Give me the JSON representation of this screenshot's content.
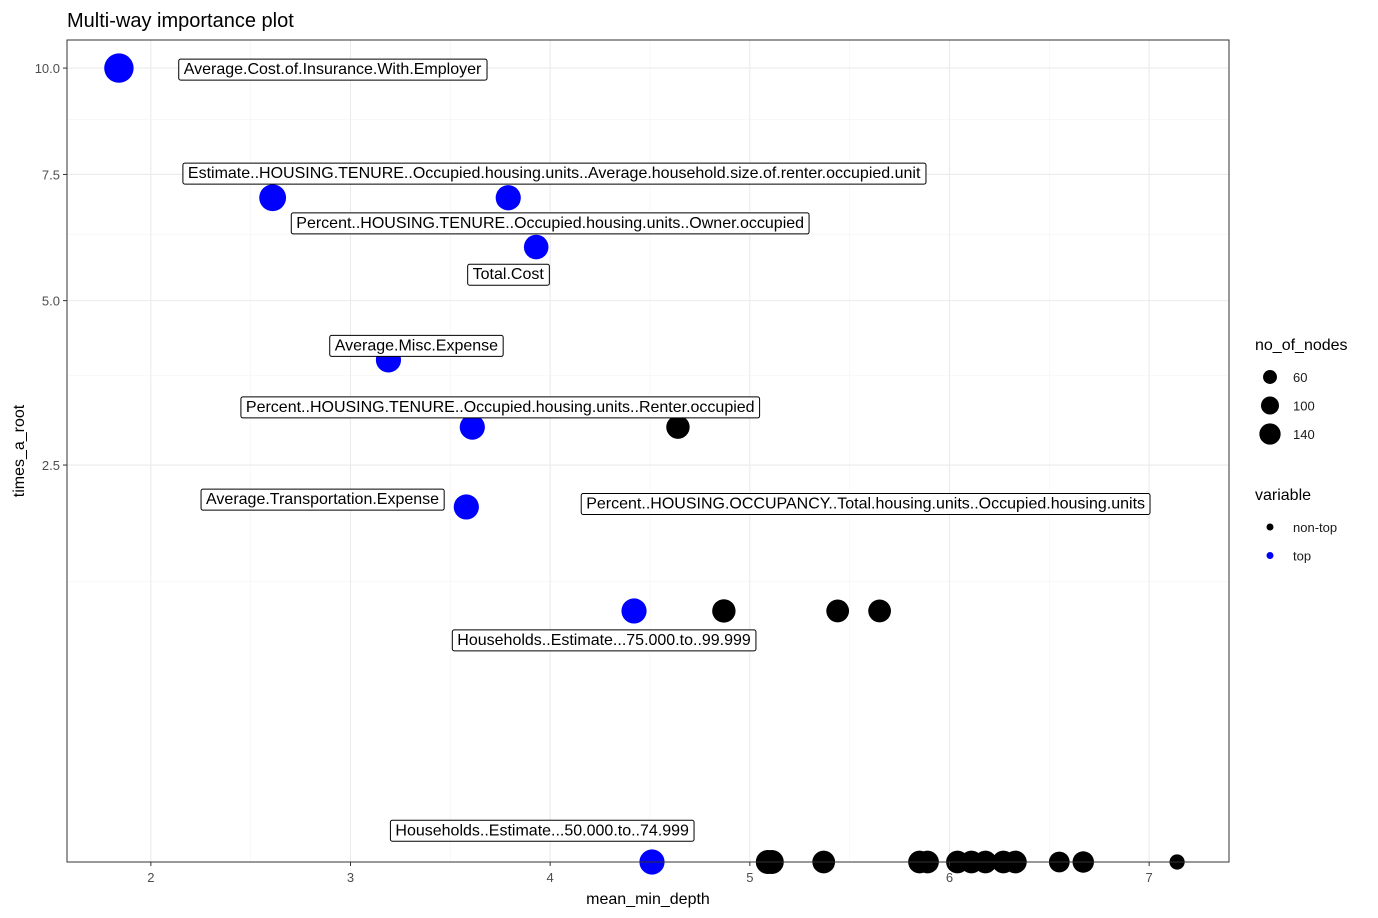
{
  "chart_data": {
    "type": "scatter",
    "title": "Multi-way importance plot",
    "xlabel": "mean_min_depth",
    "ylabel": "times_a_root",
    "xlim": [
      1.58,
      7.4
    ],
    "y_scale": "sqrt",
    "ylim": [
      0,
      10.72
    ],
    "x_ticks": [
      2,
      3,
      4,
      5,
      6,
      7
    ],
    "x_tick_labels": [
      "2",
      "3",
      "4",
      "5",
      "6",
      "7"
    ],
    "y_ticks": [
      2.5,
      5.0,
      7.5,
      10.0
    ],
    "y_tick_labels": [
      "2.5",
      "5.0",
      "7.5",
      "10.0"
    ],
    "grid": true,
    "colors": {
      "top": "#0000ff",
      "non-top": "#000000"
    },
    "legend": {
      "placement": "right",
      "size_title": "no_of_nodes",
      "size_entries": [
        {
          "label": "60",
          "value": 60
        },
        {
          "label": "100",
          "value": 100
        },
        {
          "label": "140",
          "value": 140
        }
      ],
      "color_title": "variable",
      "color_entries": [
        {
          "label": "non-top",
          "key": "non-top"
        },
        {
          "label": "top",
          "key": "top"
        }
      ]
    },
    "points": [
      {
        "x": 1.84,
        "y": 10,
        "nodes": 150,
        "variable": "top"
      },
      {
        "x": 2.61,
        "y": 7,
        "nodes": 125,
        "variable": "top"
      },
      {
        "x": 3.79,
        "y": 7,
        "nodes": 110,
        "variable": "top"
      },
      {
        "x": 3.93,
        "y": 6,
        "nodes": 105,
        "variable": "top"
      },
      {
        "x": 3.19,
        "y": 4,
        "nodes": 110,
        "variable": "top"
      },
      {
        "x": 3.61,
        "y": 3,
        "nodes": 110,
        "variable": "top"
      },
      {
        "x": 4.64,
        "y": 3,
        "nodes": 95,
        "variable": "non-top"
      },
      {
        "x": 3.58,
        "y": 2,
        "nodes": 110,
        "variable": "top"
      },
      {
        "x": 4.42,
        "y": 1,
        "nodes": 110,
        "variable": "top"
      },
      {
        "x": 4.87,
        "y": 1,
        "nodes": 95,
        "variable": "non-top"
      },
      {
        "x": 5.44,
        "y": 1,
        "nodes": 90,
        "variable": "non-top"
      },
      {
        "x": 5.65,
        "y": 1,
        "nodes": 90,
        "variable": "non-top"
      },
      {
        "x": 4.51,
        "y": 0,
        "nodes": 110,
        "variable": "top"
      },
      {
        "x": 5.09,
        "y": 0,
        "nodes": 100,
        "variable": "non-top"
      },
      {
        "x": 5.11,
        "y": 0,
        "nodes": 100,
        "variable": "non-top"
      },
      {
        "x": 5.37,
        "y": 0,
        "nodes": 90,
        "variable": "non-top"
      },
      {
        "x": 5.85,
        "y": 0,
        "nodes": 90,
        "variable": "non-top"
      },
      {
        "x": 5.89,
        "y": 0,
        "nodes": 90,
        "variable": "non-top"
      },
      {
        "x": 6.04,
        "y": 0,
        "nodes": 90,
        "variable": "non-top"
      },
      {
        "x": 6.11,
        "y": 0,
        "nodes": 90,
        "variable": "non-top"
      },
      {
        "x": 6.18,
        "y": 0,
        "nodes": 90,
        "variable": "non-top"
      },
      {
        "x": 6.27,
        "y": 0,
        "nodes": 90,
        "variable": "non-top"
      },
      {
        "x": 6.33,
        "y": 0,
        "nodes": 90,
        "variable": "non-top"
      },
      {
        "x": 6.55,
        "y": 0,
        "nodes": 75,
        "variable": "non-top"
      },
      {
        "x": 6.67,
        "y": 0,
        "nodes": 80,
        "variable": "non-top"
      },
      {
        "x": 7.14,
        "y": 0,
        "nodes": 40,
        "variable": "non-top"
      }
    ],
    "labels": [
      {
        "text": "Average.Cost.of.Insurance.With.Employer",
        "x": 2.91,
        "y": 10
      },
      {
        "text": "Estimate..HOUSING.TENURE..Occupied.housing.units..Average.household.size.of.renter.occupied.unit",
        "x": 4.02,
        "y": 7.55
      },
      {
        "text": "Percent..HOUSING.TENURE..Occupied.housing.units..Owner.occupied",
        "x": 4.0,
        "y": 6.5
      },
      {
        "text": "Total.Cost",
        "x": 3.79,
        "y": 5.5
      },
      {
        "text": "Average.Misc.Expense",
        "x": 3.33,
        "y": 4.25
      },
      {
        "text": "Percent..HOUSING.TENURE..Occupied.housing.units..Renter.occupied",
        "x": 3.75,
        "y": 3.3
      },
      {
        "text": "Average.Transportation.Expense",
        "x": 2.86,
        "y": 2.1
      },
      {
        "text": "Percent..HOUSING.OCCUPANCY..Total.housing.units..Occupied.housing.units",
        "x": 5.58,
        "y": 2.05
      },
      {
        "text": "Households..Estimate...75.000.to..99.999",
        "x": 4.27,
        "y": 0.79
      },
      {
        "text": "Households..Estimate...50.000.to..74.999",
        "x": 3.96,
        "y": 0.017
      }
    ]
  }
}
